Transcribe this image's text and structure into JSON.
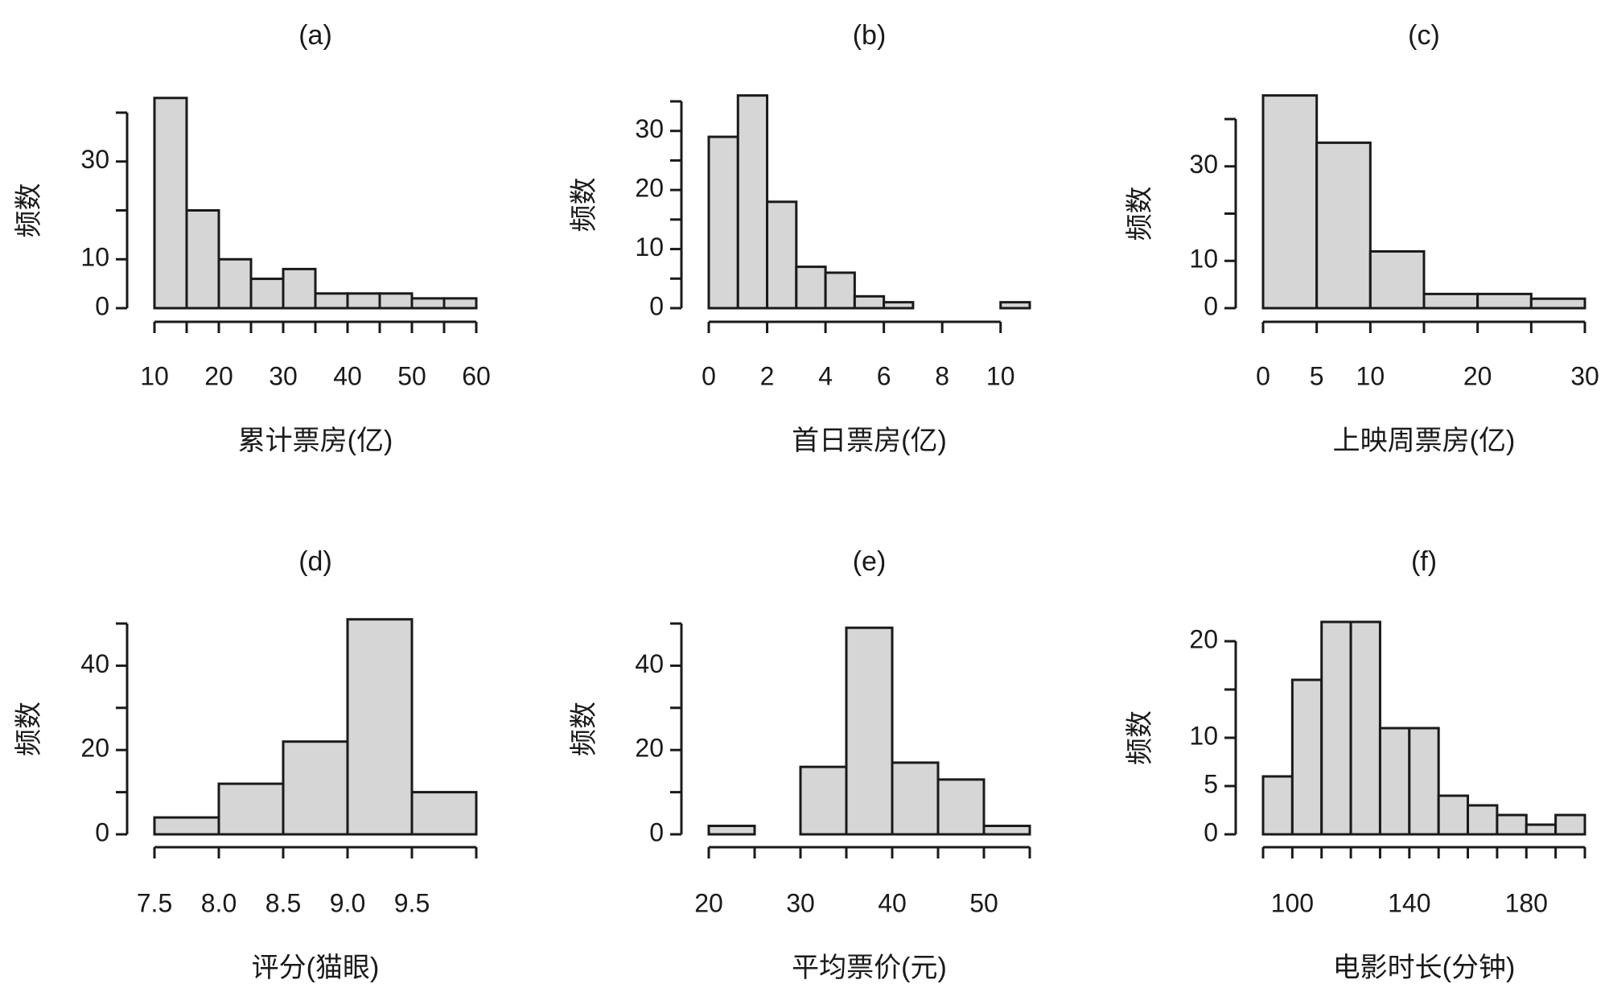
{
  "chart_data": [
    {
      "type": "bar",
      "title": "(a)",
      "xlabel": "累计票房(亿)",
      "ylabel": "频数",
      "bins": [
        [
          10,
          15
        ],
        [
          15,
          20
        ],
        [
          20,
          25
        ],
        [
          25,
          30
        ],
        [
          30,
          35
        ],
        [
          35,
          40
        ],
        [
          40,
          45
        ],
        [
          45,
          50
        ],
        [
          50,
          55
        ],
        [
          55,
          60
        ]
      ],
      "values": [
        43,
        20,
        10,
        6,
        8,
        3,
        3,
        3,
        2,
        2
      ],
      "xlim": [
        10,
        60
      ],
      "ylim": [
        0,
        40
      ],
      "xticks": [
        10,
        20,
        30,
        40,
        50,
        60
      ],
      "xtick_labels": [
        "10",
        "20",
        "30",
        "40",
        "50",
        "60"
      ],
      "xtick_marks": [
        10,
        15,
        20,
        25,
        30,
        35,
        40,
        45,
        50,
        55,
        60
      ],
      "yticks": [
        0,
        10,
        20,
        30,
        40
      ],
      "ytick_labels": [
        "0",
        "10",
        "",
        "30",
        ""
      ]
    },
    {
      "type": "bar",
      "title": "(b)",
      "xlabel": "首日票房(亿)",
      "ylabel": "频数",
      "bins": [
        [
          0,
          1
        ],
        [
          1,
          2
        ],
        [
          2,
          3
        ],
        [
          3,
          4
        ],
        [
          4,
          5
        ],
        [
          5,
          6
        ],
        [
          6,
          7
        ],
        [
          7,
          8
        ],
        [
          8,
          9
        ],
        [
          9,
          10
        ],
        [
          10,
          11
        ]
      ],
      "values": [
        29,
        36,
        18,
        7,
        6,
        2,
        1,
        0,
        0,
        0,
        1
      ],
      "xlim": [
        0,
        11
      ],
      "ylim": [
        0,
        35
      ],
      "xticks": [
        0,
        2,
        4,
        6,
        8,
        10
      ],
      "xtick_labels": [
        "0",
        "2",
        "4",
        "6",
        "8",
        "10"
      ],
      "xtick_marks": [
        0,
        2,
        4,
        6,
        8,
        10
      ],
      "yticks": [
        0,
        5,
        10,
        15,
        20,
        25,
        30,
        35
      ],
      "ytick_labels": [
        "0",
        "",
        "10",
        "",
        "20",
        "",
        "30",
        ""
      ]
    },
    {
      "type": "bar",
      "title": "(c)",
      "xlabel": "上映周票房(亿)",
      "ylabel": "频数",
      "bins": [
        [
          0,
          5
        ],
        [
          5,
          10
        ],
        [
          10,
          15
        ],
        [
          15,
          20
        ],
        [
          20,
          25
        ],
        [
          25,
          30
        ]
      ],
      "values": [
        45,
        35,
        12,
        3,
        3,
        2
      ],
      "xlim": [
        0,
        30
      ],
      "ylim": [
        0,
        40
      ],
      "xticks": [
        0,
        5,
        10,
        20,
        30
      ],
      "xtick_labels": [
        "0",
        "5",
        "10",
        "20",
        "30"
      ],
      "xtick_marks": [
        0,
        5,
        10,
        15,
        20,
        25,
        30
      ],
      "yticks": [
        0,
        10,
        20,
        30,
        40
      ],
      "ytick_labels": [
        "0",
        "10",
        "",
        "30",
        ""
      ]
    },
    {
      "type": "bar",
      "title": "(d)",
      "xlabel": "评分(猫眼)",
      "ylabel": "频数",
      "bins": [
        [
          7.5,
          8.0
        ],
        [
          8.0,
          8.5
        ],
        [
          8.5,
          9.0
        ],
        [
          9.0,
          9.5
        ],
        [
          9.5,
          10.0
        ]
      ],
      "values": [
        4,
        12,
        22,
        51,
        10
      ],
      "xlim": [
        7.5,
        10.0
      ],
      "ylim": [
        0,
        50
      ],
      "xticks": [
        7.5,
        8.0,
        8.5,
        9.0,
        9.5
      ],
      "xtick_labels": [
        "7.5",
        "8.0",
        "8.5",
        "9.0",
        "9.5"
      ],
      "xtick_marks": [
        7.5,
        8.0,
        8.5,
        9.0,
        9.5,
        10.0
      ],
      "yticks": [
        0,
        10,
        20,
        30,
        40,
        50
      ],
      "ytick_labels": [
        "0",
        "",
        "20",
        "",
        "40",
        ""
      ]
    },
    {
      "type": "bar",
      "title": "(e)",
      "xlabel": "平均票价(元)",
      "ylabel": "频数",
      "bins": [
        [
          20,
          25
        ],
        [
          25,
          30
        ],
        [
          30,
          35
        ],
        [
          35,
          40
        ],
        [
          40,
          45
        ],
        [
          45,
          50
        ],
        [
          50,
          55
        ]
      ],
      "values": [
        2,
        0,
        16,
        49,
        17,
        13,
        2
      ],
      "xlim": [
        20,
        55
      ],
      "ylim": [
        0,
        50
      ],
      "xticks": [
        20,
        30,
        40,
        50
      ],
      "xtick_labels": [
        "20",
        "30",
        "40",
        "50"
      ],
      "xtick_marks": [
        20,
        25,
        30,
        35,
        40,
        45,
        50,
        55
      ],
      "yticks": [
        0,
        10,
        20,
        30,
        40,
        50
      ],
      "ytick_labels": [
        "0",
        "",
        "20",
        "",
        "40",
        ""
      ]
    },
    {
      "type": "bar",
      "title": "(f)",
      "xlabel": "电影时长(分钟)",
      "ylabel": "频数",
      "bins": [
        [
          90,
          100
        ],
        [
          100,
          110
        ],
        [
          110,
          120
        ],
        [
          120,
          130
        ],
        [
          130,
          140
        ],
        [
          140,
          150
        ],
        [
          150,
          160
        ],
        [
          160,
          170
        ],
        [
          170,
          180
        ],
        [
          180,
          190
        ],
        [
          190,
          200
        ]
      ],
      "values": [
        6,
        16,
        22,
        22,
        11,
        11,
        4,
        3,
        2,
        1,
        2
      ],
      "xlim": [
        90,
        200
      ],
      "ylim": [
        0,
        20
      ],
      "xticks": [
        100,
        140,
        180
      ],
      "xtick_labels": [
        "100",
        "140",
        "180"
      ],
      "xtick_marks": [
        90,
        100,
        110,
        120,
        130,
        140,
        150,
        160,
        170,
        180,
        190,
        200
      ],
      "yticks": [
        0,
        5,
        10,
        15,
        20
      ],
      "ytick_labels": [
        "0",
        "5",
        "10",
        "",
        "20"
      ]
    }
  ]
}
